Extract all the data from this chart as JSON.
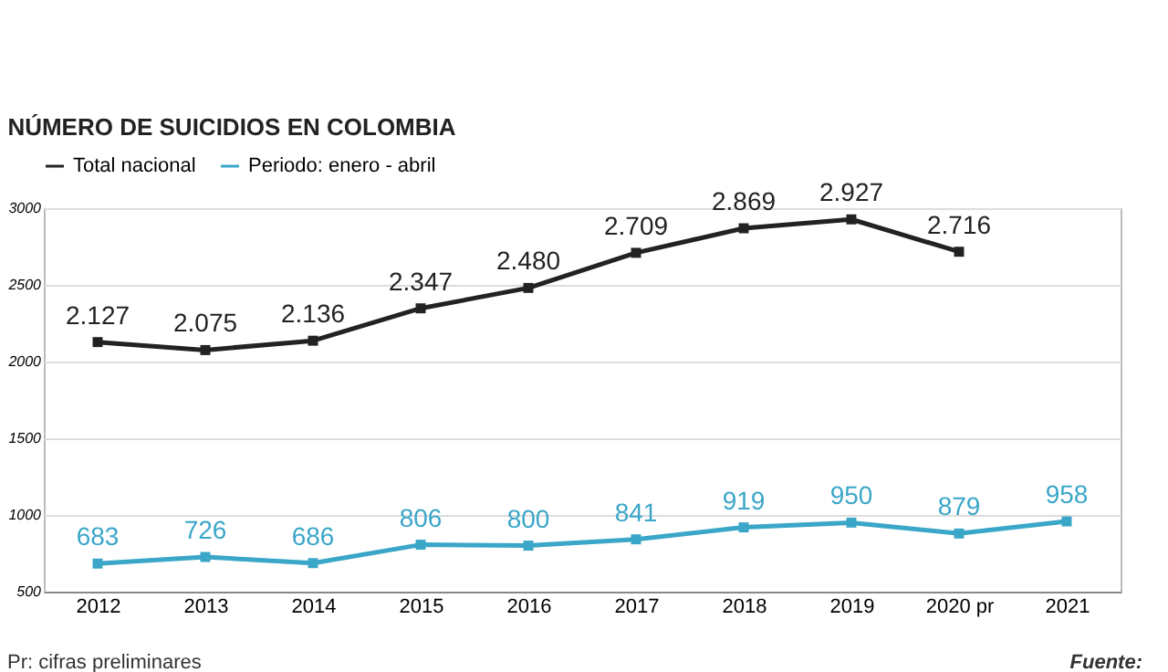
{
  "chart_data": {
    "type": "line",
    "title": "NÚMERO DE SUICIDIOS EN COLOMBIA",
    "categories": [
      "2012",
      "2013",
      "2014",
      "2015",
      "2016",
      "2017",
      "2018",
      "2019",
      "2020 pr",
      "2021"
    ],
    "series": [
      {
        "name": "Total nacional",
        "color": "#222222",
        "values": [
          2127,
          2075,
          2136,
          2347,
          2480,
          2709,
          2869,
          2927,
          2716,
          null
        ],
        "value_labels": [
          "2.127",
          "2.075",
          "2.136",
          "2.347",
          "2.480",
          "2.709",
          "2.869",
          "2.927",
          "2.716",
          null
        ]
      },
      {
        "name": "Periodo: enero - abril",
        "color": "#3aa6c8",
        "values": [
          683,
          726,
          686,
          806,
          800,
          841,
          919,
          950,
          879,
          958
        ],
        "value_labels": [
          "683",
          "726",
          "686",
          "806",
          "800",
          "841",
          "919",
          "950",
          "879",
          "958"
        ]
      }
    ],
    "ylim": [
      500,
      3000
    ],
    "yticks": [
      500,
      1000,
      1500,
      2000,
      2500,
      3000
    ],
    "grid": "y",
    "legend": "top",
    "marker": "square",
    "annotations": [
      "Pr: cifras preliminares",
      "Fuente:"
    ]
  }
}
